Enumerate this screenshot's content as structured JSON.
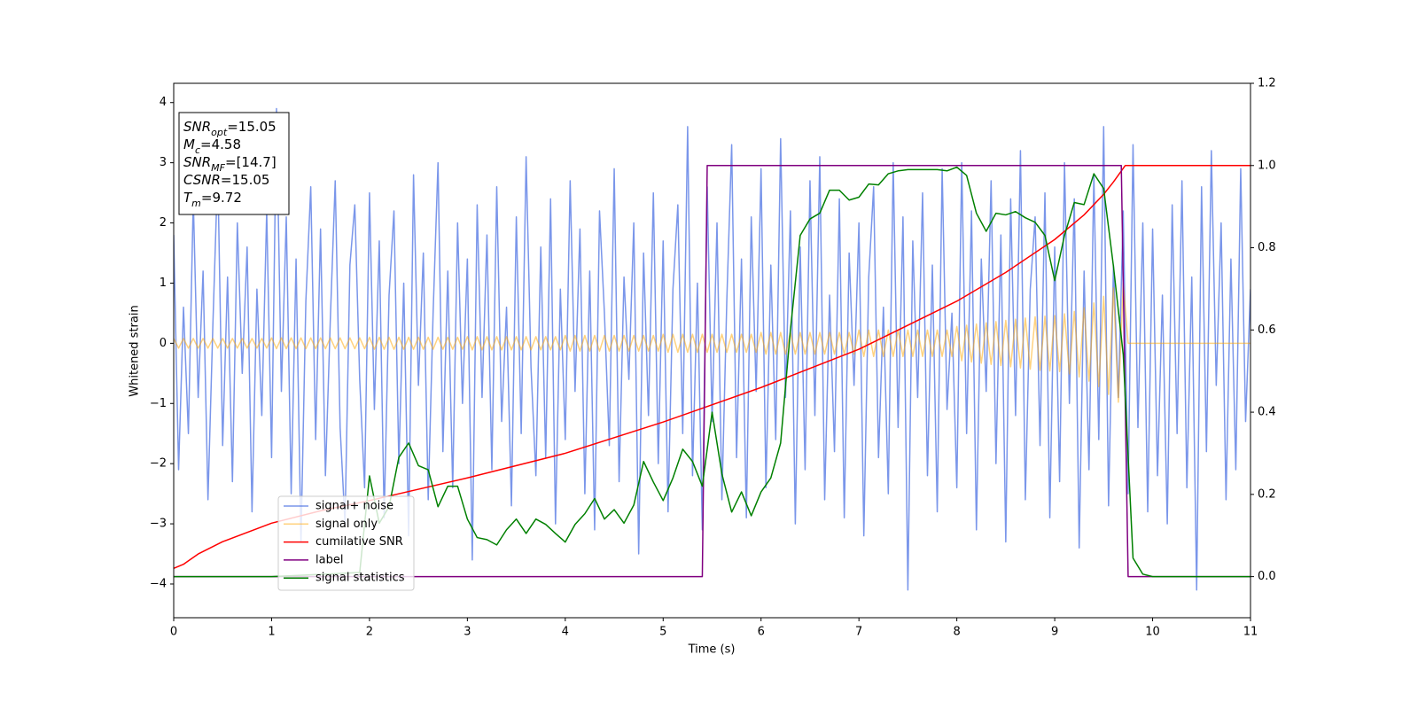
{
  "chart_data": {
    "type": "line",
    "xlabel": "Time (s)",
    "ylabel": "Whitened strain",
    "xlim": [
      0,
      11
    ],
    "ylim": [
      -4.56,
      4.32
    ],
    "y2lim": [
      -0.1,
      1.2
    ],
    "xticks": [
      0,
      1,
      2,
      3,
      4,
      5,
      6,
      7,
      8,
      9,
      10,
      11
    ],
    "yticks": [
      {
        "value": -4,
        "label": "−4"
      },
      {
        "value": -3,
        "label": "−3"
      },
      {
        "value": -2,
        "label": "−2"
      },
      {
        "value": -1,
        "label": "−1"
      },
      0,
      1,
      2,
      3,
      4
    ],
    "y2ticks": [
      {
        "value": 0,
        "label": "0.0"
      },
      0.2,
      0.4,
      0.6,
      0.8,
      {
        "value": 1,
        "label": "1.0"
      },
      1.2
    ],
    "annotation": [
      {
        "main": "SNR",
        "sub": "opt",
        "tail": "=15.05"
      },
      {
        "main": "M",
        "sub": "c",
        "tail": "=4.58"
      },
      {
        "main": "SNR",
        "sub": "MF",
        "tail": "=[14.7]"
      },
      {
        "main": "CSNR",
        "tail": "=15.05"
      },
      {
        "main": "T",
        "sub": "m",
        "tail": "=9.72"
      }
    ],
    "x": [
      0,
      0.05,
      0.1,
      0.15,
      0.2,
      0.25,
      0.3,
      0.35,
      0.4,
      0.45,
      0.5,
      0.55,
      0.6,
      0.65,
      0.7,
      0.75,
      0.8,
      0.85,
      0.9,
      0.95,
      1,
      1.05,
      1.1,
      1.15,
      1.2,
      1.25,
      1.3,
      1.35,
      1.4,
      1.45,
      1.5,
      1.55,
      1.6,
      1.65,
      1.7,
      1.75,
      1.8,
      1.85,
      1.9,
      1.95,
      2,
      2.05,
      2.1,
      2.15,
      2.2,
      2.25,
      2.3,
      2.35,
      2.4,
      2.45,
      2.5,
      2.55,
      2.6,
      2.65,
      2.7,
      2.75,
      2.8,
      2.85,
      2.9,
      2.95,
      3,
      3.05,
      3.1,
      3.15,
      3.2,
      3.25,
      3.3,
      3.35,
      3.4,
      3.45,
      3.5,
      3.55,
      3.6,
      3.65,
      3.7,
      3.75,
      3.8,
      3.85,
      3.9,
      3.95,
      4,
      4.05,
      4.1,
      4.15,
      4.2,
      4.25,
      4.3,
      4.35,
      4.4,
      4.45,
      4.5,
      4.55,
      4.6,
      4.65,
      4.7,
      4.75,
      4.8,
      4.85,
      4.9,
      4.95,
      5,
      5.05,
      5.1,
      5.15,
      5.2,
      5.25,
      5.3,
      5.35,
      5.4,
      5.45,
      5.5,
      5.55,
      5.6,
      5.65,
      5.7,
      5.75,
      5.8,
      5.85,
      5.9,
      5.95,
      6,
      6.05,
      6.1,
      6.15,
      6.2,
      6.25,
      6.3,
      6.35,
      6.4,
      6.45,
      6.5,
      6.55,
      6.6,
      6.65,
      6.7,
      6.75,
      6.8,
      6.85,
      6.9,
      6.95,
      7,
      7.05,
      7.1,
      7.15,
      7.2,
      7.25,
      7.3,
      7.35,
      7.4,
      7.45,
      7.5,
      7.55,
      7.6,
      7.65,
      7.7,
      7.75,
      7.8,
      7.85,
      7.9,
      7.95,
      8,
      8.05,
      8.1,
      8.15,
      8.2,
      8.25,
      8.3,
      8.35,
      8.4,
      8.45,
      8.5,
      8.55,
      8.6,
      8.65,
      8.7,
      8.75,
      8.8,
      8.85,
      8.9,
      8.95,
      9,
      9.05,
      9.1,
      9.15,
      9.2,
      9.25,
      9.3,
      9.35,
      9.4,
      9.45,
      9.5,
      9.55,
      9.6,
      9.65,
      9.7,
      9.75,
      9.8,
      9.85,
      9.9,
      9.95,
      10,
      10.05,
      10.1,
      10.15,
      10.2,
      10.25,
      10.3,
      10.35,
      10.4,
      10.45,
      10.5,
      10.55,
      10.6,
      10.65,
      10.7,
      10.75,
      10.8,
      10.85,
      10.9,
      10.95,
      11
    ],
    "series": [
      {
        "name": "signal+ noise",
        "color": "#4169e1",
        "alpha": 0.7,
        "values": [
          1.8,
          -2.1,
          0.6,
          -1.5,
          2.4,
          -0.9,
          1.2,
          -2.6,
          0.3,
          2.9,
          -1.7,
          1.1,
          -2.3,
          2.0,
          -0.5,
          1.6,
          -2.8,
          0.9,
          -1.2,
          2.2,
          -1.9,
          3.9,
          -0.8,
          2.1,
          -2.5,
          1.4,
          -3.3,
          0.7,
          2.6,
          -1.6,
          1.9,
          -2.2,
          0.4,
          2.7,
          -1.4,
          -3.0,
          1.3,
          2.3,
          -0.6,
          -2.4,
          2.5,
          -1.1,
          1.7,
          -2.9,
          0.8,
          2.2,
          -2.0,
          1.0,
          -3.2,
          2.8,
          -0.7,
          1.5,
          -2.6,
          0.5,
          3.0,
          -1.8,
          1.2,
          -2.4,
          2.0,
          -1.0,
          1.4,
          -3.6,
          2.3,
          -0.9,
          1.8,
          -2.1,
          2.6,
          -1.3,
          0.6,
          -2.7,
          2.1,
          -1.5,
          3.1,
          -0.4,
          -2.2,
          1.6,
          -1.9,
          2.4,
          -3.0,
          0.9,
          -1.6,
          2.7,
          -0.8,
          1.9,
          -2.5,
          1.2,
          -3.1,
          2.2,
          0.5,
          -1.7,
          2.9,
          -2.3,
          1.1,
          -0.6,
          2.0,
          -3.5,
          1.5,
          -1.2,
          2.5,
          -2.0,
          1.7,
          -2.8,
          0.9,
          2.3,
          -1.5,
          3.6,
          -2.2,
          1.0,
          -3.1,
          2.6,
          -1.3,
          2.0,
          -2.6,
          0.7,
          3.3,
          -1.9,
          1.4,
          -2.9,
          2.1,
          -0.8,
          2.9,
          -2.4,
          1.3,
          -1.6,
          3.4,
          -0.9,
          2.2,
          -3.0,
          1.6,
          -2.1,
          2.7,
          -1.2,
          3.1,
          -2.6,
          0.8,
          -1.8,
          2.4,
          -2.9,
          1.5,
          -0.7,
          2.0,
          -3.2,
          1.1,
          2.6,
          -1.9,
          0.6,
          -2.5,
          3.0,
          -1.4,
          2.1,
          -4.1,
          1.7,
          -0.9,
          2.5,
          -2.2,
          1.3,
          -2.8,
          2.9,
          -1.1,
          0.5,
          -2.4,
          3.0,
          -1.5,
          2.2,
          -3.1,
          1.4,
          -0.8,
          2.7,
          -2.0,
          1.8,
          -3.3,
          2.4,
          -1.2,
          3.2,
          -2.6,
          0.9,
          2.1,
          -1.7,
          2.5,
          -2.9,
          1.6,
          -2.3,
          3.0,
          -1.0,
          2.4,
          -3.4,
          1.2,
          -2.1,
          2.8,
          -1.6,
          3.6,
          -2.7,
          1.3,
          -0.9,
          2.2,
          -2.5,
          3.3,
          -1.4,
          2.0,
          -2.8,
          1.9,
          -2.2,
          0.8,
          -3.0,
          2.3,
          -1.5,
          2.7,
          -2.4,
          1.1,
          -4.1,
          2.6,
          -1.8,
          3.2,
          -0.7,
          2.0,
          -2.6,
          1.4,
          -2.1,
          2.9,
          -1.3,
          0.9
        ]
      },
      {
        "name": "signal only",
        "color": "#ffa500",
        "alpha": 0.5,
        "values": [
          0.08,
          -0.08,
          0.08,
          -0.08,
          0.08,
          -0.08,
          0.08,
          -0.08,
          0.08,
          -0.08,
          0.08,
          -0.08,
          0.08,
          -0.08,
          0.08,
          -0.08,
          0.08,
          -0.08,
          0.08,
          -0.08,
          0.09,
          -0.09,
          0.09,
          -0.09,
          0.09,
          -0.09,
          0.09,
          -0.09,
          0.09,
          -0.09,
          0.09,
          -0.09,
          0.09,
          -0.09,
          0.09,
          -0.09,
          0.09,
          -0.09,
          0.09,
          -0.09,
          0.1,
          -0.1,
          0.1,
          -0.1,
          0.1,
          -0.1,
          0.1,
          -0.1,
          0.1,
          -0.1,
          0.1,
          -0.1,
          0.1,
          -0.1,
          0.1,
          -0.1,
          0.1,
          -0.1,
          0.1,
          -0.1,
          0.11,
          -0.11,
          0.11,
          -0.11,
          0.11,
          -0.11,
          0.11,
          -0.11,
          0.11,
          -0.11,
          0.11,
          -0.11,
          0.11,
          -0.11,
          0.11,
          -0.11,
          0.11,
          -0.11,
          0.11,
          -0.11,
          0.13,
          -0.13,
          0.13,
          -0.13,
          0.13,
          -0.13,
          0.13,
          -0.13,
          0.13,
          -0.13,
          0.13,
          -0.13,
          0.13,
          -0.13,
          0.13,
          -0.13,
          0.13,
          -0.13,
          0.13,
          -0.13,
          0.15,
          -0.15,
          0.15,
          -0.15,
          0.15,
          -0.15,
          0.15,
          -0.15,
          0.15,
          -0.15,
          0.15,
          -0.15,
          0.15,
          -0.15,
          0.15,
          -0.15,
          0.15,
          -0.15,
          0.15,
          -0.15,
          0.18,
          -0.18,
          0.18,
          -0.18,
          0.18,
          -0.18,
          0.18,
          -0.18,
          0.18,
          -0.18,
          0.18,
          -0.18,
          0.18,
          -0.18,
          0.18,
          -0.18,
          0.18,
          -0.18,
          0.18,
          -0.18,
          0.22,
          -0.22,
          0.22,
          -0.22,
          0.22,
          -0.22,
          0.22,
          -0.22,
          0.22,
          -0.22,
          0.22,
          -0.22,
          0.22,
          -0.22,
          0.22,
          -0.22,
          0.22,
          -0.22,
          0.22,
          -0.22,
          0.28,
          -0.29,
          0.3,
          -0.31,
          0.32,
          -0.33,
          0.34,
          -0.35,
          0.36,
          -0.37,
          0.38,
          -0.39,
          0.4,
          -0.41,
          0.42,
          -0.43,
          0.44,
          -0.45,
          0.45,
          -0.46,
          0.46,
          -0.47,
          0.49,
          -0.51,
          0.53,
          -0.56,
          0.59,
          -0.63,
          0.67,
          -0.72,
          0.78,
          -0.85,
          0.92,
          -0.98,
          1.0,
          0,
          0,
          0,
          0,
          0,
          0,
          0,
          0,
          0,
          0,
          0,
          0,
          0,
          0,
          0,
          0,
          0,
          0,
          0,
          0,
          0,
          0,
          0,
          0,
          0,
          0
        ]
      },
      {
        "name": "cumilative SNR",
        "color": "#ff0000",
        "axis": "y2",
        "x": [
          0,
          0.1,
          0.25,
          0.5,
          1,
          1.5,
          2,
          3,
          4,
          5,
          6,
          7,
          8,
          8.5,
          9,
          9.3,
          9.5,
          9.6,
          9.72,
          11
        ],
        "values": [
          0.02,
          0.03,
          0.055,
          0.085,
          0.13,
          0.16,
          0.185,
          0.24,
          0.3,
          0.376,
          0.46,
          0.553,
          0.67,
          0.74,
          0.82,
          0.88,
          0.93,
          0.96,
          1,
          1
        ]
      },
      {
        "name": "label",
        "color": "#800080",
        "axis": "y2",
        "x": [
          0,
          5.4,
          5.45,
          9.68,
          9.75,
          11
        ],
        "values": [
          0,
          0,
          1,
          1,
          0,
          0
        ]
      },
      {
        "name": "signal statistics",
        "color": "#008000",
        "axis": "y2",
        "x": [
          0,
          1,
          1.9,
          2,
          2.1,
          2.2,
          2.3,
          2.4,
          2.5,
          2.6,
          2.7,
          2.8,
          2.9,
          3,
          3.1,
          3.2,
          3.3,
          3.4,
          3.5,
          3.6,
          3.7,
          3.8,
          3.9,
          4,
          4.1,
          4.2,
          4.3,
          4.4,
          4.5,
          4.6,
          4.7,
          4.8,
          4.9,
          5,
          5.1,
          5.2,
          5.3,
          5.4,
          5.5,
          5.6,
          5.7,
          5.8,
          5.9,
          6,
          6.1,
          6.2,
          6.3,
          6.4,
          6.5,
          6.6,
          6.7,
          6.8,
          6.9,
          7,
          7.1,
          7.2,
          7.3,
          7.4,
          7.5,
          7.6,
          7.7,
          7.8,
          7.9,
          8,
          8.1,
          8.2,
          8.3,
          8.4,
          8.5,
          8.6,
          8.7,
          8.8,
          8.9,
          9,
          9.1,
          9.2,
          9.3,
          9.4,
          9.5,
          9.6,
          9.7,
          9.8,
          9.9,
          10,
          11
        ],
        "values": [
          0,
          0,
          0.01,
          0.245,
          0.13,
          0.17,
          0.29,
          0.325,
          0.27,
          0.26,
          0.17,
          0.22,
          0.22,
          0.14,
          0.095,
          0.09,
          0.077,
          0.114,
          0.14,
          0.105,
          0.14,
          0.127,
          0.105,
          0.084,
          0.127,
          0.153,
          0.19,
          0.14,
          0.163,
          0.13,
          0.174,
          0.28,
          0.23,
          0.185,
          0.24,
          0.31,
          0.28,
          0.22,
          0.4,
          0.25,
          0.157,
          0.206,
          0.148,
          0.206,
          0.24,
          0.325,
          0.6,
          0.83,
          0.87,
          0.884,
          0.94,
          0.94,
          0.916,
          0.923,
          0.955,
          0.953,
          0.98,
          0.987,
          0.99,
          0.99,
          0.99,
          0.99,
          0.987,
          0.996,
          0.976,
          0.884,
          0.84,
          0.884,
          0.88,
          0.888,
          0.873,
          0.862,
          0.83,
          0.72,
          0.83,
          0.91,
          0.905,
          0.98,
          0.944,
          0.755,
          0.54,
          0.045,
          0.006,
          0,
          0
        ]
      }
    ]
  }
}
